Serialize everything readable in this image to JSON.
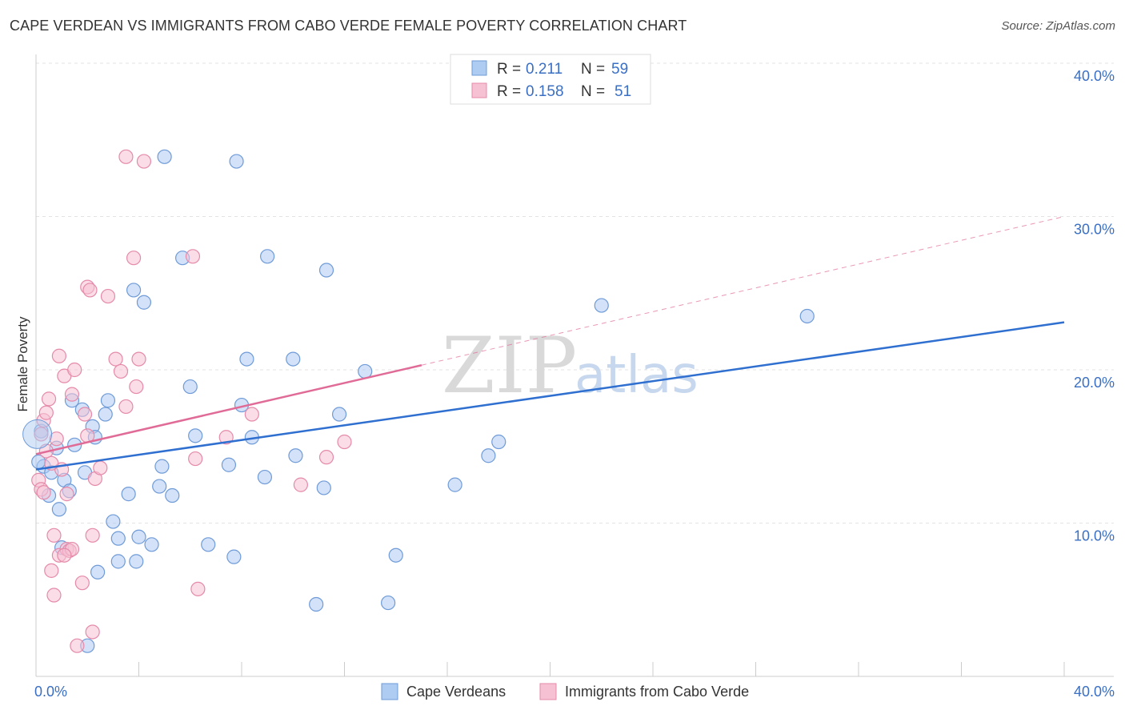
{
  "title": "CAPE VERDEAN VS IMMIGRANTS FROM CABO VERDE FEMALE POVERTY CORRELATION CHART",
  "source": "Source: ZipAtlas.com",
  "watermark": {
    "zip": "ZIP",
    "atlas": "atlas"
  },
  "chart_data": {
    "type": "scatter",
    "title": "CAPE VERDEAN VS IMMIGRANTS FROM CABO VERDE FEMALE POVERTY CORRELATION CHART",
    "xlabel": "",
    "ylabel": "Female Poverty",
    "xlim": [
      0,
      40
    ],
    "ylim": [
      0,
      40
    ],
    "x_ticks": [
      "0.0%",
      "40.0%"
    ],
    "y_ticks": [
      {
        "value": 10,
        "label": "10.0%"
      },
      {
        "value": 20,
        "label": "20.0%"
      },
      {
        "value": 30,
        "label": "30.0%"
      },
      {
        "value": 40,
        "label": "40.0%"
      }
    ],
    "grid": true,
    "legend_position": "top-center",
    "stats": [
      {
        "r_label": "R =",
        "r": "0.211",
        "n_label": "N =",
        "n": "59"
      },
      {
        "r_label": "R =",
        "r": "0.158",
        "n_label": "N =",
        "n": "51"
      }
    ],
    "series": [
      {
        "name": "Cape Verdeans",
        "fill": "#aecbf2",
        "stroke": "#6f9bd8",
        "line_color": "#2f6fd0",
        "trend": {
          "x0": 0,
          "y0": 13.5,
          "x1": 40,
          "y1": 23.1,
          "dashed_from": null
        },
        "points": [
          [
            0.3,
            13.7
          ],
          [
            0.5,
            11.8
          ],
          [
            0.6,
            13.3
          ],
          [
            0.8,
            14.9
          ],
          [
            0.9,
            10.9
          ],
          [
            1.0,
            8.4
          ],
          [
            1.1,
            12.8
          ],
          [
            1.3,
            12.1
          ],
          [
            1.4,
            18.0
          ],
          [
            1.5,
            15.1
          ],
          [
            1.8,
            17.4
          ],
          [
            1.9,
            13.3
          ],
          [
            2.2,
            16.3
          ],
          [
            2.3,
            15.6
          ],
          [
            2.4,
            6.8
          ],
          [
            2.7,
            17.1
          ],
          [
            2.8,
            18.0
          ],
          [
            3.0,
            10.1
          ],
          [
            3.2,
            9.0
          ],
          [
            3.2,
            7.5
          ],
          [
            3.6,
            11.9
          ],
          [
            3.8,
            25.2
          ],
          [
            3.9,
            7.5
          ],
          [
            4.0,
            9.1
          ],
          [
            4.2,
            24.4
          ],
          [
            4.5,
            8.6
          ],
          [
            4.8,
            12.4
          ],
          [
            4.9,
            13.7
          ],
          [
            5.0,
            33.9
          ],
          [
            5.3,
            11.8
          ],
          [
            5.7,
            27.3
          ],
          [
            6.0,
            18.9
          ],
          [
            6.2,
            15.7
          ],
          [
            6.7,
            8.6
          ],
          [
            7.5,
            13.8
          ],
          [
            7.7,
            7.8
          ],
          [
            7.8,
            33.6
          ],
          [
            8.0,
            17.7
          ],
          [
            8.2,
            20.7
          ],
          [
            8.4,
            15.6
          ],
          [
            8.9,
            13.0
          ],
          [
            9.0,
            27.4
          ],
          [
            10.0,
            20.7
          ],
          [
            10.1,
            14.4
          ],
          [
            10.9,
            4.7
          ],
          [
            11.2,
            12.3
          ],
          [
            11.3,
            26.5
          ],
          [
            11.8,
            17.1
          ],
          [
            12.8,
            19.9
          ],
          [
            13.7,
            4.8
          ],
          [
            14.0,
            7.9
          ],
          [
            16.3,
            12.5
          ],
          [
            17.6,
            14.4
          ],
          [
            18.0,
            15.3
          ],
          [
            22.0,
            24.2
          ],
          [
            30.0,
            23.5
          ],
          [
            0.1,
            14.0
          ],
          [
            0.2,
            16.0
          ],
          [
            2.0,
            2.0
          ]
        ]
      },
      {
        "name": "Immigrants from Cabo Verde",
        "fill": "#f6c1d3",
        "stroke": "#e58aaa",
        "line_color": "#e06b97",
        "trend": {
          "x0": 0,
          "y0": 14.5,
          "x1": 15,
          "y1": 20.3,
          "dash_x1": 40,
          "dash_y1": 30.0
        },
        "points": [
          [
            0.1,
            12.8
          ],
          [
            0.2,
            12.2
          ],
          [
            0.3,
            16.7
          ],
          [
            0.4,
            14.7
          ],
          [
            0.4,
            17.2
          ],
          [
            0.5,
            18.1
          ],
          [
            0.6,
            6.9
          ],
          [
            0.7,
            9.2
          ],
          [
            0.7,
            5.3
          ],
          [
            0.8,
            15.5
          ],
          [
            0.9,
            7.9
          ],
          [
            0.9,
            20.9
          ],
          [
            1.0,
            13.5
          ],
          [
            1.1,
            19.6
          ],
          [
            1.2,
            8.3
          ],
          [
            1.2,
            11.9
          ],
          [
            1.3,
            8.2
          ],
          [
            1.4,
            8.3
          ],
          [
            1.5,
            20.0
          ],
          [
            1.6,
            2.0
          ],
          [
            1.8,
            6.1
          ],
          [
            1.9,
            17.1
          ],
          [
            2.0,
            15.7
          ],
          [
            2.0,
            25.4
          ],
          [
            2.1,
            25.2
          ],
          [
            2.2,
            9.2
          ],
          [
            2.3,
            12.9
          ],
          [
            2.5,
            13.6
          ],
          [
            2.2,
            2.9
          ],
          [
            2.8,
            24.8
          ],
          [
            3.1,
            20.7
          ],
          [
            3.3,
            19.9
          ],
          [
            3.5,
            33.9
          ],
          [
            3.5,
            17.6
          ],
          [
            3.8,
            27.3
          ],
          [
            3.9,
            18.9
          ],
          [
            4.0,
            20.7
          ],
          [
            4.2,
            33.6
          ],
          [
            6.1,
            27.4
          ],
          [
            6.2,
            14.2
          ],
          [
            6.3,
            5.7
          ],
          [
            7.4,
            15.6
          ],
          [
            8.4,
            17.1
          ],
          [
            10.3,
            12.5
          ],
          [
            11.3,
            14.3
          ],
          [
            12.0,
            15.3
          ],
          [
            0.2,
            15.8
          ],
          [
            1.4,
            18.4
          ],
          [
            0.3,
            12.0
          ],
          [
            0.6,
            13.9
          ],
          [
            1.1,
            7.9
          ]
        ]
      }
    ]
  }
}
